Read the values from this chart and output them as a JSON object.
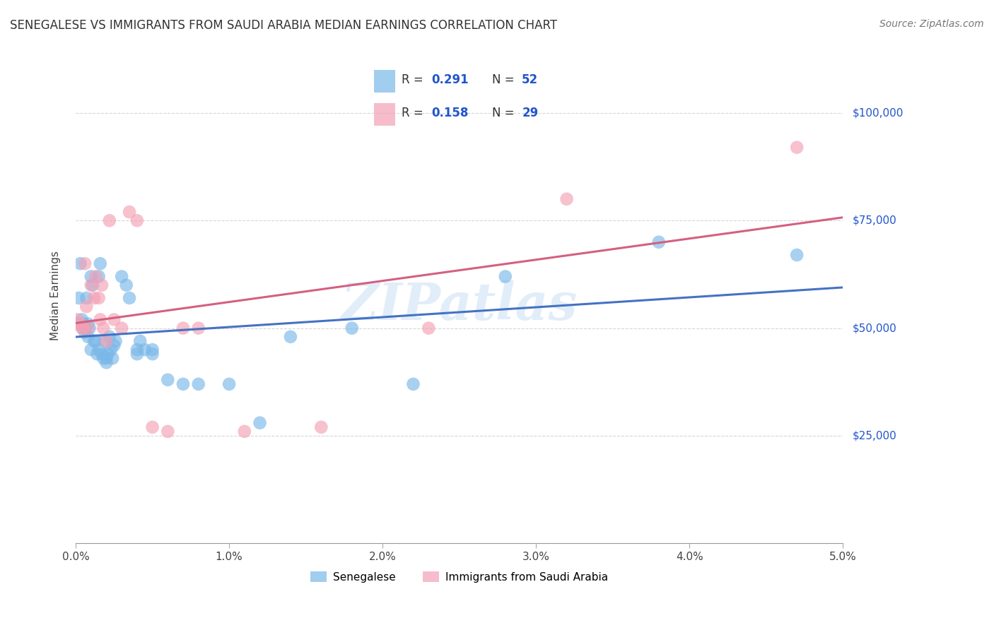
{
  "title": "SENEGALESE VS IMMIGRANTS FROM SAUDI ARABIA MEDIAN EARNINGS CORRELATION CHART",
  "source": "Source: ZipAtlas.com",
  "ylabel_label": "Median Earnings",
  "xlim": [
    0.0,
    0.05
  ],
  "ylim": [
    0,
    115000
  ],
  "xtick_labels": [
    "0.0%",
    "1.0%",
    "2.0%",
    "3.0%",
    "4.0%",
    "5.0%"
  ],
  "xtick_positions": [
    0.0,
    0.01,
    0.02,
    0.03,
    0.04,
    0.05
  ],
  "ytick_labels": [
    "$25,000",
    "$50,000",
    "$75,000",
    "$100,000"
  ],
  "ytick_positions": [
    25000,
    50000,
    75000,
    100000
  ],
  "senegalese_color": "#7ab8e8",
  "saudi_color": "#f4a0b5",
  "senegalese_R": 0.291,
  "senegalese_N": 52,
  "saudi_R": 0.158,
  "saudi_N": 29,
  "legend_color": "#2255cc",
  "watermark": "ZIPatlas",
  "background_color": "#ffffff",
  "grid_color": "#cccccc",
  "title_color": "#333333",
  "ytick_color": "#2255cc",
  "blue_line_color": "#4472c4",
  "pink_line_color": "#d46080",
  "senegalese_x": [
    0.0001,
    0.0002,
    0.0003,
    0.0004,
    0.0005,
    0.0005,
    0.0006,
    0.0006,
    0.0007,
    0.0008,
    0.0008,
    0.0009,
    0.001,
    0.001,
    0.0011,
    0.0012,
    0.0013,
    0.0014,
    0.0015,
    0.0015,
    0.0016,
    0.0017,
    0.0018,
    0.0019,
    0.002,
    0.002,
    0.0021,
    0.0022,
    0.0023,
    0.0024,
    0.0025,
    0.0026,
    0.003,
    0.0033,
    0.0035,
    0.004,
    0.004,
    0.0042,
    0.0045,
    0.005,
    0.005,
    0.006,
    0.007,
    0.008,
    0.01,
    0.012,
    0.014,
    0.018,
    0.022,
    0.028,
    0.038,
    0.047
  ],
  "senegalese_y": [
    51000,
    57000,
    65000,
    52000,
    51000,
    50000,
    50000,
    49000,
    57000,
    51000,
    48000,
    50000,
    62000,
    45000,
    60000,
    47000,
    47000,
    44000,
    62000,
    45000,
    65000,
    44000,
    43000,
    47000,
    43000,
    42000,
    44000,
    48000,
    45000,
    43000,
    46000,
    47000,
    62000,
    60000,
    57000,
    44000,
    45000,
    47000,
    45000,
    44000,
    45000,
    38000,
    37000,
    37000,
    37000,
    28000,
    48000,
    50000,
    37000,
    62000,
    70000,
    67000
  ],
  "saudi_x": [
    0.0001,
    0.0003,
    0.0004,
    0.0005,
    0.0006,
    0.0007,
    0.0008,
    0.001,
    0.0012,
    0.0013,
    0.0015,
    0.0016,
    0.0017,
    0.0018,
    0.002,
    0.0022,
    0.0025,
    0.003,
    0.0035,
    0.004,
    0.005,
    0.006,
    0.007,
    0.008,
    0.011,
    0.016,
    0.023,
    0.032,
    0.047
  ],
  "saudi_y": [
    52000,
    51000,
    50000,
    50000,
    65000,
    55000,
    50000,
    60000,
    57000,
    62000,
    57000,
    52000,
    60000,
    50000,
    47000,
    75000,
    52000,
    50000,
    77000,
    75000,
    27000,
    26000,
    50000,
    50000,
    26000,
    27000,
    50000,
    80000,
    92000
  ]
}
